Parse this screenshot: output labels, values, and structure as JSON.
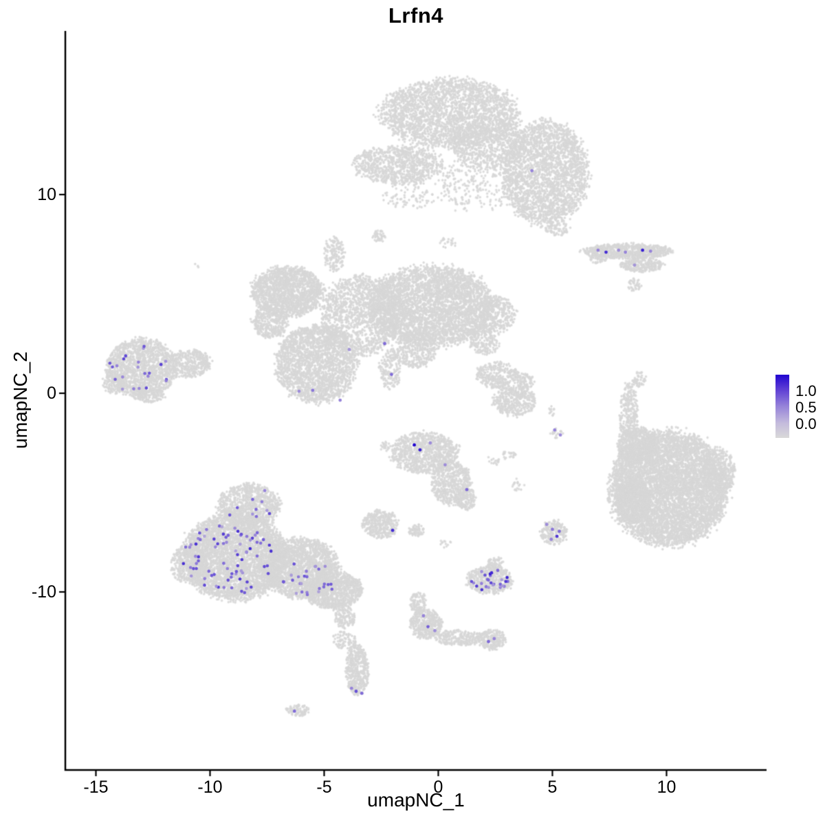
{
  "chart_data": {
    "type": "scatter",
    "title": "Lrfn4",
    "xlabel": "umapNC_1",
    "ylabel": "umapNC_2",
    "xlim": [
      -16.4,
      14.4
    ],
    "ylim": [
      -19.0,
      18.2
    ],
    "xticks": [
      -15,
      -10,
      -5,
      0,
      5,
      10
    ],
    "xtick_labels": [
      "-15",
      "-10",
      "-5",
      "0",
      "5",
      "10"
    ],
    "yticks": [
      -10,
      0,
      10
    ],
    "ytick_labels": [
      "-10",
      "0",
      "10"
    ],
    "grid": false,
    "legend": {
      "position": "right",
      "labels": [
        "1.0",
        "0.5",
        "0.0"
      ],
      "values": [
        1.0,
        0.5,
        0.0
      ]
    },
    "colors": {
      "low": "#D7D7D7",
      "high": "#2105D0",
      "axis": "#000000",
      "background": "#FFFFFF"
    },
    "gradient_stops": [
      {
        "t": 0.0,
        "color": "#D9D9D9"
      },
      {
        "t": 0.5,
        "color": "#9683D9"
      },
      {
        "t": 1.0,
        "color": "#2105D0"
      }
    ],
    "point_radius_px": {
      "background": 1.7,
      "expressing": 2.3
    },
    "background_clusters": [
      [
        0.5,
        14.1,
        3.0,
        1.75,
        2600
      ],
      [
        4.7,
        11.1,
        1.85,
        2.6,
        2600
      ],
      [
        -1.8,
        11.5,
        1.95,
        0.95,
        900
      ],
      [
        2.2,
        12.6,
        1.6,
        1.3,
        700
      ],
      [
        1.6,
        10.6,
        1.6,
        1.5,
        260
      ],
      [
        5.2,
        8.3,
        0.55,
        0.35,
        70
      ],
      [
        -1.2,
        10.0,
        1.2,
        0.7,
        90
      ],
      [
        8.3,
        7.15,
        1.9,
        0.38,
        750
      ],
      [
        8.9,
        6.45,
        0.95,
        0.35,
        260
      ],
      [
        8.6,
        5.45,
        0.3,
        0.35,
        40
      ],
      [
        7.0,
        6.8,
        0.4,
        0.25,
        60
      ],
      [
        -6.6,
        5.1,
        1.55,
        1.25,
        1700
      ],
      [
        -5.35,
        1.5,
        1.75,
        1.95,
        2300
      ],
      [
        -3.4,
        3.9,
        1.7,
        2.0,
        1400
      ],
      [
        -0.3,
        4.4,
        2.7,
        2.0,
        3900
      ],
      [
        2.6,
        4.0,
        0.8,
        0.9,
        300
      ],
      [
        2.0,
        2.7,
        0.7,
        0.8,
        220
      ],
      [
        -2.1,
        1.2,
        0.5,
        1.0,
        170
      ],
      [
        -4.55,
        7.0,
        0.45,
        0.9,
        160
      ],
      [
        -2.6,
        7.9,
        0.3,
        0.3,
        45
      ],
      [
        -7.4,
        3.6,
        0.8,
        0.8,
        400
      ],
      [
        -1.0,
        2.2,
        1.0,
        0.9,
        400
      ],
      [
        0.4,
        7.6,
        0.4,
        0.3,
        20
      ],
      [
        -13.0,
        1.3,
        1.5,
        1.45,
        1500
      ],
      [
        -10.9,
        1.5,
        0.95,
        0.7,
        420
      ],
      [
        -12.7,
        -0.1,
        0.7,
        0.35,
        150
      ],
      [
        -14.2,
        0.5,
        0.5,
        0.5,
        150
      ],
      [
        -10.6,
        6.4,
        0.12,
        0.12,
        3
      ],
      [
        2.6,
        0.9,
        0.95,
        0.65,
        320
      ],
      [
        3.3,
        -0.4,
        0.95,
        0.75,
        380
      ],
      [
        3.8,
        0.6,
        0.4,
        0.4,
        80
      ],
      [
        3.7,
        0.1,
        0.25,
        0.5,
        25
      ],
      [
        8.35,
        -1.1,
        0.4,
        1.6,
        300
      ],
      [
        8.15,
        -3.1,
        0.25,
        0.4,
        40
      ],
      [
        8.8,
        0.7,
        0.3,
        0.4,
        50
      ],
      [
        10.1,
        -4.8,
        2.55,
        2.85,
        6500
      ],
      [
        8.75,
        -2.6,
        0.9,
        0.85,
        600
      ],
      [
        8.55,
        -5.4,
        0.75,
        1.1,
        600
      ],
      [
        12.3,
        -4.0,
        0.7,
        1.2,
        400
      ],
      [
        -0.6,
        -3.0,
        1.45,
        1.05,
        950
      ],
      [
        0.55,
        -4.5,
        0.85,
        1.1,
        600
      ],
      [
        1.2,
        -5.3,
        0.45,
        0.55,
        160
      ],
      [
        -2.3,
        -2.7,
        0.3,
        0.25,
        22
      ],
      [
        2.4,
        -3.4,
        0.3,
        0.25,
        15
      ],
      [
        3.1,
        -3.1,
        0.3,
        0.25,
        22
      ],
      [
        3.5,
        -4.6,
        0.3,
        0.3,
        18
      ],
      [
        5.2,
        -2.0,
        0.3,
        0.3,
        18
      ],
      [
        4.9,
        -0.9,
        0.2,
        0.3,
        12
      ],
      [
        -2.55,
        -6.6,
        0.8,
        0.7,
        380
      ],
      [
        -0.95,
        -6.9,
        0.35,
        0.3,
        70
      ],
      [
        -8.3,
        -5.6,
        1.35,
        1.05,
        850
      ],
      [
        -8.9,
        -8.2,
        2.25,
        2.2,
        4200
      ],
      [
        -6.0,
        -8.8,
        1.65,
        1.5,
        2100
      ],
      [
        -4.6,
        -9.9,
        1.25,
        0.95,
        1000
      ],
      [
        -10.9,
        -8.6,
        0.8,
        1.0,
        400
      ],
      [
        -4.1,
        -11.3,
        0.45,
        0.55,
        130
      ],
      [
        -4.3,
        -12.4,
        0.35,
        0.45,
        45
      ],
      [
        2.25,
        -9.4,
        1.0,
        0.7,
        480
      ],
      [
        2.5,
        -8.55,
        0.35,
        0.3,
        70
      ],
      [
        5.05,
        -7.0,
        0.6,
        0.6,
        220
      ],
      [
        -0.55,
        -11.6,
        0.7,
        0.75,
        420
      ],
      [
        -0.9,
        -10.55,
        0.35,
        0.55,
        110
      ],
      [
        0.9,
        -12.3,
        1.05,
        0.4,
        260
      ],
      [
        2.35,
        -12.4,
        0.6,
        0.5,
        230
      ],
      [
        -3.55,
        -13.9,
        0.5,
        1.25,
        480
      ],
      [
        -3.9,
        -12.5,
        0.3,
        0.4,
        40
      ],
      [
        -6.15,
        -15.95,
        0.5,
        0.3,
        90
      ],
      [
        0.3,
        -7.6,
        0.3,
        0.2,
        12
      ]
    ],
    "expression_regions": [
      [
        -13.1,
        1.3,
        1.4,
        1.3,
        22,
        0.35,
        0.8
      ],
      [
        -9.2,
        -8.3,
        2.0,
        1.9,
        78,
        0.3,
        0.85
      ],
      [
        -5.8,
        -9.3,
        1.5,
        1.0,
        26,
        0.3,
        0.7
      ],
      [
        -8.3,
        -5.9,
        1.1,
        0.8,
        9,
        0.35,
        0.8
      ],
      [
        2.25,
        -9.4,
        0.85,
        0.55,
        26,
        0.35,
        0.9
      ]
    ],
    "expression_points": [
      [
        4.1,
        11.2,
        0.5
      ],
      [
        7.0,
        7.2,
        0.5
      ],
      [
        7.35,
        7.1,
        0.85
      ],
      [
        7.9,
        7.2,
        0.45
      ],
      [
        8.2,
        7.1,
        0.5
      ],
      [
        8.95,
        7.2,
        0.9
      ],
      [
        9.3,
        7.15,
        0.5
      ],
      [
        8.6,
        6.45,
        0.4
      ],
      [
        -2.35,
        2.5,
        0.6
      ],
      [
        -2.05,
        0.95,
        0.6
      ],
      [
        -5.5,
        0.15,
        0.55
      ],
      [
        -6.1,
        0.1,
        0.45
      ],
      [
        -4.3,
        -0.35,
        0.5
      ],
      [
        -3.9,
        2.2,
        0.4
      ],
      [
        -1.05,
        -2.6,
        1.0
      ],
      [
        -0.8,
        -2.85,
        0.9
      ],
      [
        -0.35,
        -2.5,
        0.45
      ],
      [
        0.3,
        -3.6,
        0.45
      ],
      [
        1.25,
        -4.85,
        0.6
      ],
      [
        -2.0,
        -6.9,
        0.85
      ],
      [
        5.1,
        -1.85,
        0.5
      ],
      [
        5.35,
        -2.1,
        0.45
      ],
      [
        4.75,
        -6.6,
        0.45
      ],
      [
        5.0,
        -6.85,
        0.55
      ],
      [
        5.2,
        -7.2,
        0.8
      ],
      [
        4.95,
        -7.35,
        0.5
      ],
      [
        5.3,
        -6.95,
        0.6
      ],
      [
        -0.65,
        -11.2,
        0.5
      ],
      [
        -0.45,
        -11.75,
        0.65
      ],
      [
        -0.15,
        -11.95,
        0.45
      ],
      [
        2.2,
        -12.5,
        0.6
      ],
      [
        2.45,
        -12.35,
        0.5
      ],
      [
        -3.6,
        -15.0,
        0.7
      ],
      [
        -3.35,
        -15.1,
        0.6
      ],
      [
        -3.8,
        -14.85,
        0.5
      ],
      [
        -6.3,
        -16.0,
        0.6
      ],
      [
        -7.6,
        -4.9,
        0.5
      ]
    ]
  }
}
